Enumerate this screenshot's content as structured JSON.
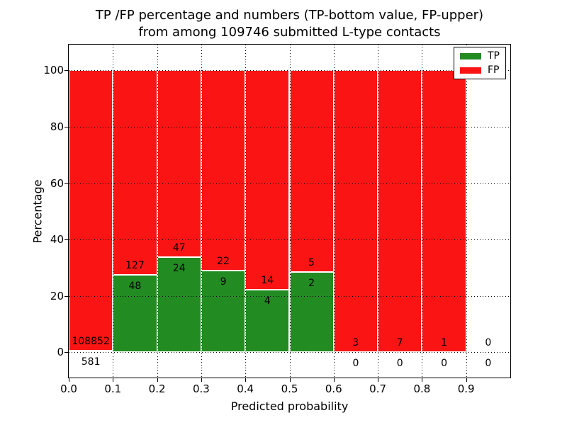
{
  "chart_data": {
    "type": "bar",
    "variant": "stacked-percentage-histogram",
    "title_line1": "TP /FP percentage and numbers (TP-bottom value, FP-upper)",
    "title_line2": "from among 109746 submitted L-type contacts",
    "xlabel": "Predicted probability",
    "ylabel": "Percentage",
    "x_ticks": [
      "0.0",
      "0.1",
      "0.2",
      "0.3",
      "0.4",
      "0.5",
      "0.6",
      "0.7",
      "0.8",
      "0.9"
    ],
    "y_ticks": [
      "0",
      "20",
      "40",
      "60",
      "80",
      "100"
    ],
    "y_tick_values": [
      0,
      20,
      40,
      60,
      80,
      100
    ],
    "xlim": [
      0.0,
      1.0
    ],
    "ylim": [
      -9.2,
      109.5
    ],
    "grid": "dotted",
    "bar_edge_color": "#ffffff",
    "colors": {
      "tp": "#228b22",
      "fp": "#fb1414"
    },
    "legend": {
      "position": "upper right",
      "entries": [
        {
          "label": "TP",
          "color": "#228b22"
        },
        {
          "label": "FP",
          "color": "#fb1414"
        }
      ]
    },
    "bins": [
      {
        "range": "0.0-0.1",
        "tp": 581,
        "fp": 108852,
        "tp_pct": 0.53
      },
      {
        "range": "0.1-0.2",
        "tp": 48,
        "fp": 127,
        "tp_pct": 27.43
      },
      {
        "range": "0.2-0.3",
        "tp": 24,
        "fp": 47,
        "tp_pct": 33.8
      },
      {
        "range": "0.3-0.4",
        "tp": 9,
        "fp": 22,
        "tp_pct": 29.03
      },
      {
        "range": "0.4-0.5",
        "tp": 4,
        "fp": 14,
        "tp_pct": 22.22
      },
      {
        "range": "0.5-0.6",
        "tp": 2,
        "fp": 5,
        "tp_pct": 28.57
      },
      {
        "range": "0.6-0.7",
        "tp": 0,
        "fp": 3,
        "tp_pct": 0
      },
      {
        "range": "0.7-0.8",
        "tp": 0,
        "fp": 7,
        "tp_pct": 0
      },
      {
        "range": "0.8-0.9",
        "tp": 0,
        "fp": 1,
        "tp_pct": 0
      },
      {
        "range": "0.9-1.0",
        "tp": 0,
        "fp": 0,
        "tp_pct": null
      }
    ]
  }
}
